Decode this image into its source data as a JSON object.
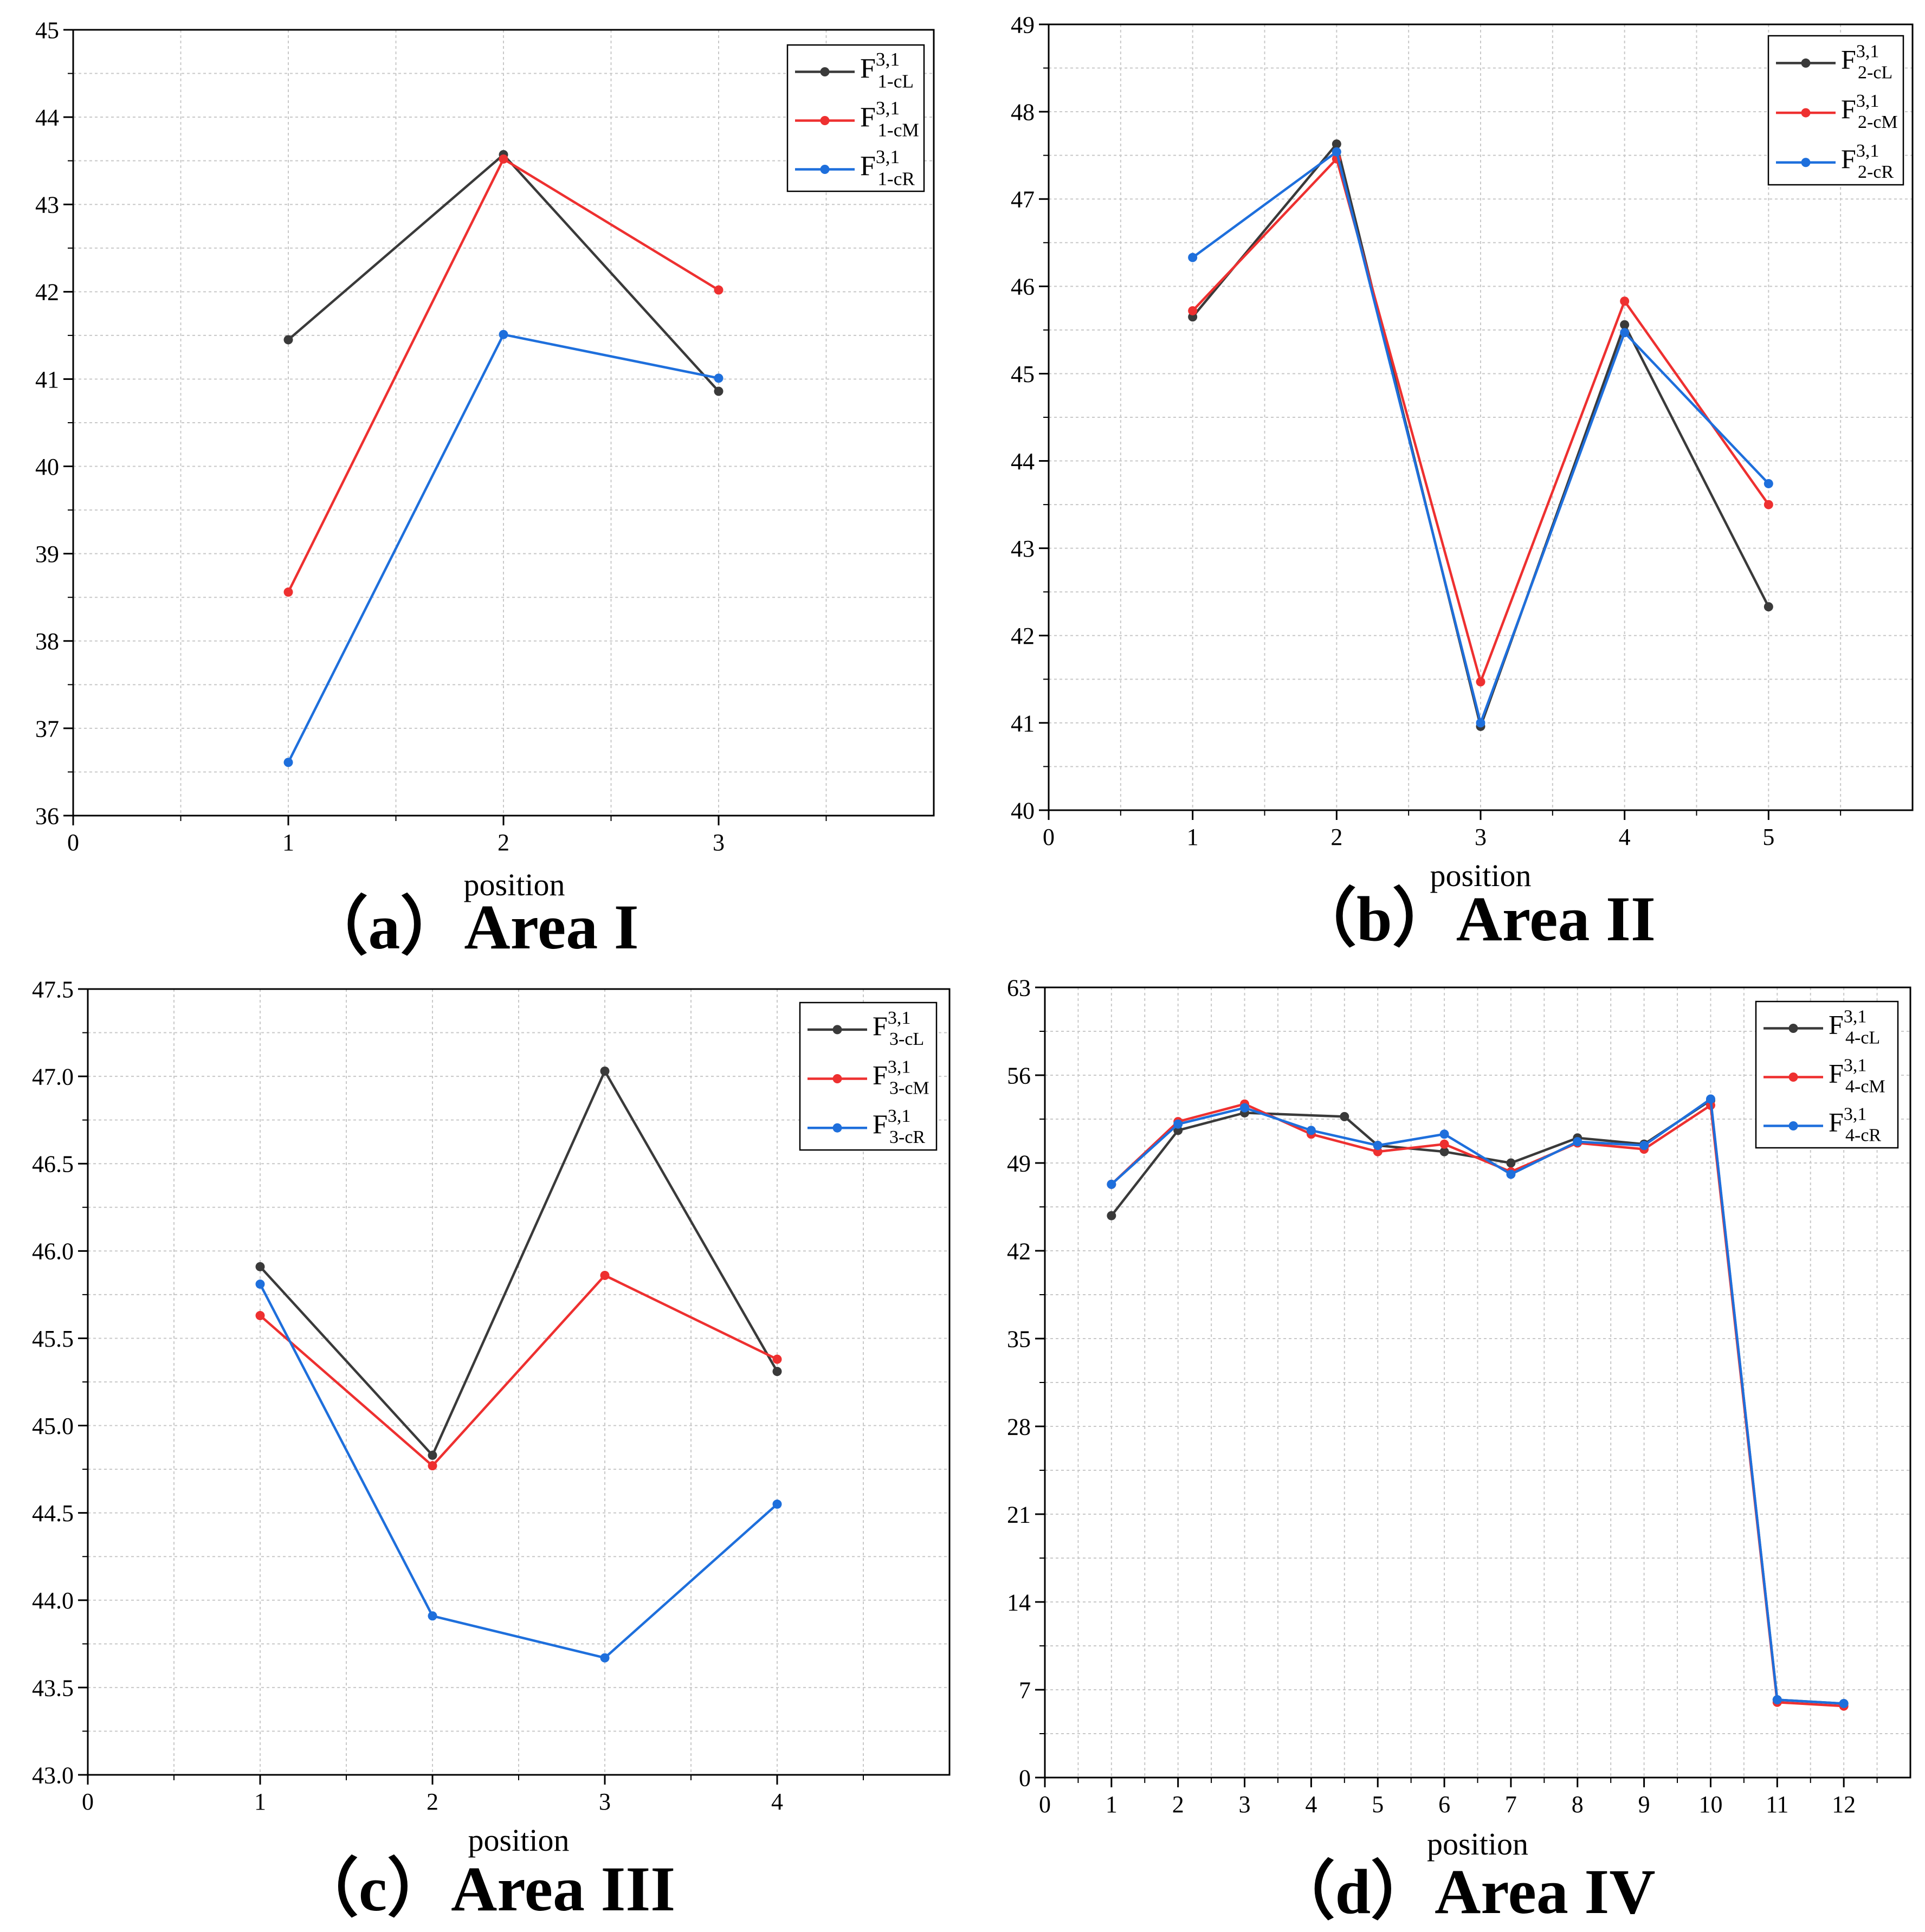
{
  "figure": {
    "colors": {
      "black": "#3a3a3a",
      "red": "#ee3030",
      "blue": "#1e6fdc",
      "grid": "#c8c8c8",
      "axis": "#000000"
    }
  },
  "chart_data": [
    {
      "type": "line",
      "panel": "a",
      "caption": "（a）Area I",
      "xlabel": "position",
      "ylabel": "",
      "xlim": [
        0,
        4
      ],
      "ylim": [
        36,
        45
      ],
      "xticks": [
        "0",
        "1",
        "2",
        "3"
      ],
      "yticks": [
        "36",
        "37",
        "38",
        "39",
        "40",
        "41",
        "42",
        "43",
        "44",
        "45"
      ],
      "grid": true,
      "legend_position": "top-right",
      "x": [
        1,
        2,
        3
      ],
      "series": [
        {
          "name": "F",
          "sup": "3,1",
          "sub": "1-cL",
          "color": "#3a3a3a",
          "x": [
            1,
            2,
            3
          ],
          "values": [
            41.45,
            43.57,
            40.86
          ]
        },
        {
          "name": "F",
          "sup": "3,1",
          "sub": "1-cM",
          "color": "#ee3030",
          "x": [
            1,
            2,
            3
          ],
          "values": [
            38.56,
            43.52,
            42.02
          ]
        },
        {
          "name": "F",
          "sup": "3,1",
          "sub": "1-cR",
          "color": "#1e6fdc",
          "x": [
            1,
            2,
            3
          ],
          "values": [
            36.61,
            41.51,
            41.01
          ]
        }
      ]
    },
    {
      "type": "line",
      "panel": "b",
      "caption": "（b）Area II",
      "xlabel": "position",
      "ylabel": "",
      "xlim": [
        0,
        6
      ],
      "ylim": [
        40,
        49
      ],
      "xticks": [
        "0",
        "1",
        "2",
        "3",
        "4",
        "5"
      ],
      "yticks": [
        "40",
        "41",
        "42",
        "43",
        "44",
        "45",
        "46",
        "47",
        "48",
        "49"
      ],
      "grid": true,
      "legend_position": "top-right",
      "x": [
        1,
        2,
        3,
        4,
        5
      ],
      "series": [
        {
          "name": "F",
          "sup": "3,1",
          "sub": "2-cL",
          "color": "#3a3a3a",
          "x": [
            1,
            2,
            3,
            4,
            5
          ],
          "values": [
            45.65,
            47.63,
            40.96,
            45.56,
            42.33
          ]
        },
        {
          "name": "F",
          "sup": "3,1",
          "sub": "2-cM",
          "color": "#ee3030",
          "x": [
            1,
            2,
            3,
            4,
            5
          ],
          "values": [
            45.72,
            47.46,
            41.47,
            45.83,
            43.5
          ]
        },
        {
          "name": "F",
          "sup": "3,1",
          "sub": "2-cR",
          "color": "#1e6fdc",
          "x": [
            1,
            2,
            3,
            4,
            5
          ],
          "values": [
            46.33,
            47.54,
            41.0,
            45.47,
            43.74
          ]
        }
      ]
    },
    {
      "type": "line",
      "panel": "c",
      "caption": "（c）Area III",
      "xlabel": "position",
      "ylabel": "",
      "xlim": [
        0,
        5
      ],
      "ylim": [
        43.0,
        47.5
      ],
      "xticks": [
        "0",
        "1",
        "2",
        "3",
        "4"
      ],
      "yticks": [
        "43.0",
        "43.5",
        "44.0",
        "44.5",
        "45.0",
        "45.5",
        "46.0",
        "46.5",
        "47.0",
        "47.5"
      ],
      "grid": true,
      "legend_position": "top-right",
      "x": [
        1,
        2,
        3,
        4
      ],
      "series": [
        {
          "name": "F",
          "sup": "3,1",
          "sub": "3-cL",
          "color": "#3a3a3a",
          "x": [
            1,
            2,
            3,
            4
          ],
          "values": [
            45.91,
            44.83,
            47.03,
            45.31
          ]
        },
        {
          "name": "F",
          "sup": "3,1",
          "sub": "3-cM",
          "color": "#ee3030",
          "x": [
            1,
            2,
            3,
            4
          ],
          "values": [
            45.63,
            44.77,
            45.86,
            45.38
          ]
        },
        {
          "name": "F",
          "sup": "3,1",
          "sub": "3-cR",
          "color": "#1e6fdc",
          "x": [
            1,
            2,
            3,
            4
          ],
          "values": [
            45.81,
            43.91,
            43.67,
            44.55
          ]
        }
      ]
    },
    {
      "type": "line",
      "panel": "d",
      "caption": "（d）Area IV",
      "xlabel": "position",
      "ylabel": "",
      "xlim": [
        0,
        13
      ],
      "ylim": [
        0,
        63
      ],
      "xticks": [
        "0",
        "1",
        "2",
        "3",
        "4",
        "5",
        "6",
        "7",
        "8",
        "9",
        "10",
        "11",
        "12"
      ],
      "yticks": [
        "0",
        "7",
        "14",
        "21",
        "28",
        "35",
        "42",
        "49",
        "56",
        "63"
      ],
      "grid": true,
      "legend_position": "top-right",
      "x": [
        1,
        2,
        3,
        4,
        5,
        6,
        7,
        8,
        9,
        10,
        11,
        12
      ],
      "series": [
        {
          "name": "F",
          "sup": "3,1",
          "sub": "4-cL",
          "color": "#3a3a3a",
          "x": [
            1,
            2,
            3,
            4.5,
            5,
            6,
            7,
            8,
            9,
            10,
            11,
            12
          ],
          "values": [
            44.8,
            51.6,
            53.0,
            52.7,
            50.4,
            49.9,
            49.0,
            51.0,
            50.5,
            54.0,
            6.2,
            5.9
          ]
        },
        {
          "name": "F",
          "sup": "3,1",
          "sub": "4-cM",
          "color": "#ee3030",
          "x": [
            1,
            2,
            3,
            4,
            5,
            6,
            7,
            8,
            9,
            10,
            11,
            12
          ],
          "values": [
            47.3,
            52.3,
            53.7,
            51.3,
            49.9,
            50.5,
            48.3,
            50.6,
            50.1,
            53.6,
            6.0,
            5.7
          ]
        },
        {
          "name": "F",
          "sup": "3,1",
          "sub": "4-cR",
          "color": "#1e6fdc",
          "x": [
            1,
            2,
            3,
            4,
            5,
            6,
            7,
            8,
            9,
            10,
            11,
            12
          ],
          "values": [
            47.3,
            52.1,
            53.4,
            51.6,
            50.4,
            51.3,
            48.1,
            50.7,
            50.4,
            54.1,
            6.2,
            5.9
          ]
        }
      ]
    }
  ]
}
